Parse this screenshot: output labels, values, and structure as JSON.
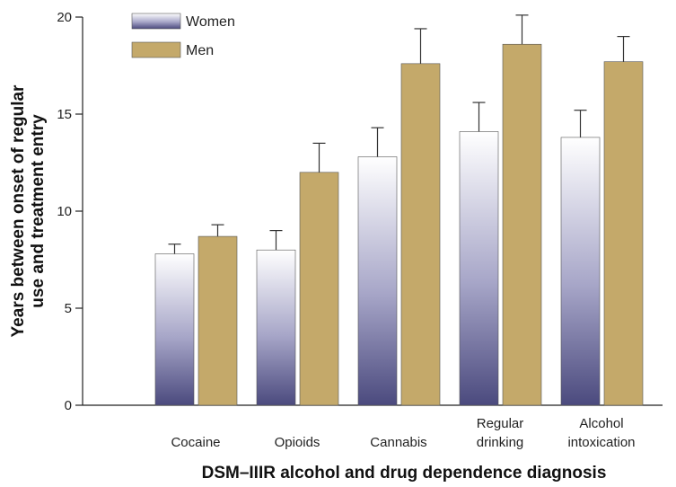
{
  "chart_data": {
    "type": "bar",
    "title": "",
    "xlabel": "DSM–IIIR alcohol and drug dependence diagnosis",
    "ylabel_lines": [
      "Years between onset of regular",
      "use and treatment entry"
    ],
    "ylim": [
      0,
      20
    ],
    "yticks": [
      0,
      5,
      10,
      15,
      20
    ],
    "categories": [
      [
        "Cocaine"
      ],
      [
        "Opioids"
      ],
      [
        "Cannabis"
      ],
      [
        "Regular",
        "drinking"
      ],
      [
        "Alcohol",
        "intoxication"
      ]
    ],
    "series": [
      {
        "name": "Women",
        "values": [
          7.8,
          8.0,
          12.8,
          14.1,
          13.8
        ],
        "error": [
          0.5,
          1.0,
          1.5,
          1.5,
          1.4
        ],
        "fill": "gradient",
        "color_top": "#ffffff",
        "color_bottom": "#4b4a7e"
      },
      {
        "name": "Men",
        "values": [
          8.7,
          12.0,
          17.6,
          18.6,
          17.7
        ],
        "error": [
          0.6,
          1.5,
          1.8,
          1.5,
          1.3
        ],
        "fill": "solid",
        "color": "#c4a96a"
      }
    ],
    "legend_position": "top-left",
    "grid": false,
    "error_bars": true
  }
}
